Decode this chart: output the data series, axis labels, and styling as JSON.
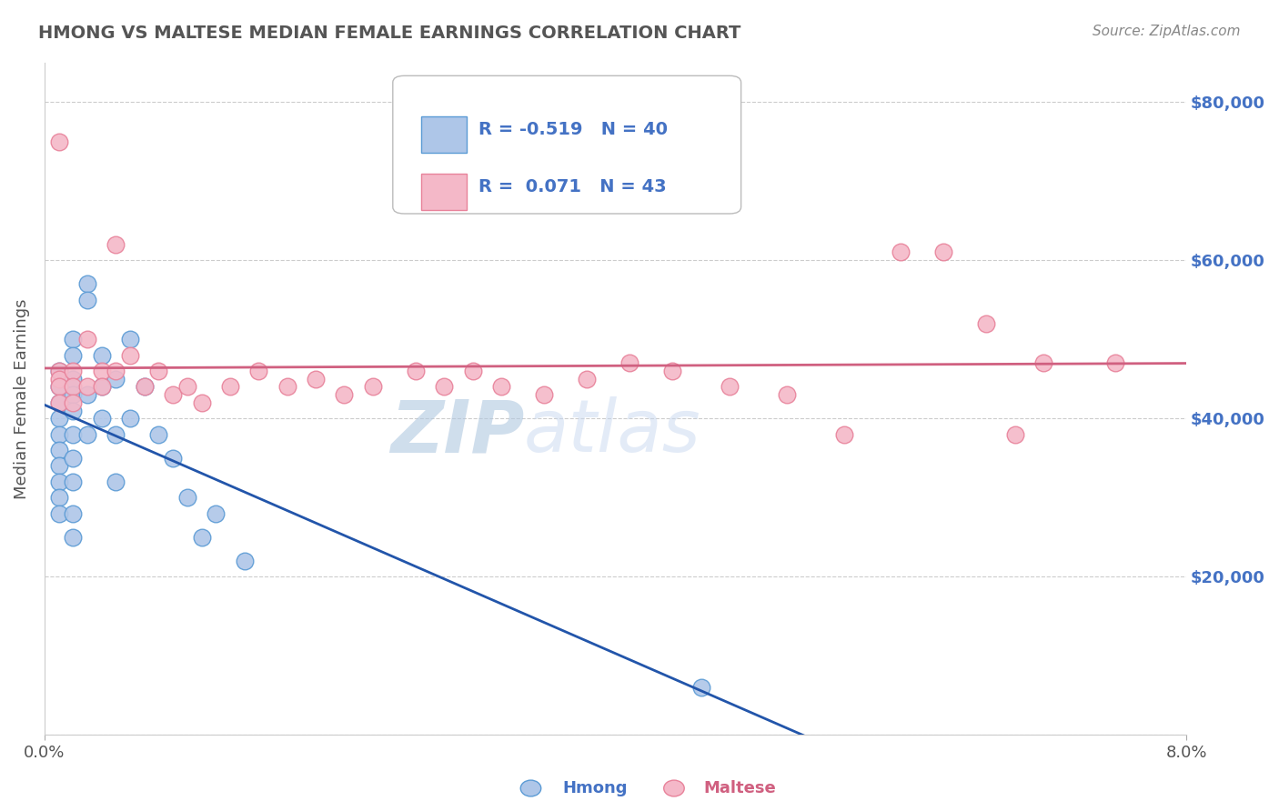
{
  "title": "HMONG VS MALTESE MEDIAN FEMALE EARNINGS CORRELATION CHART",
  "source": "Source: ZipAtlas.com",
  "ylabel": "Median Female Earnings",
  "y_ticks": [
    0,
    20000,
    40000,
    60000,
    80000
  ],
  "y_tick_labels": [
    "",
    "$20,000",
    "$40,000",
    "$60,000",
    "$80,000"
  ],
  "x_min": 0.0,
  "x_max": 0.08,
  "y_min": 0,
  "y_max": 85000,
  "hmong_color": "#aec6e8",
  "hmong_edge_color": "#5b9bd5",
  "maltese_color": "#f4b8c8",
  "maltese_edge_color": "#e8829a",
  "hmong_line_color": "#2255aa",
  "maltese_line_color": "#d06080",
  "hmong_R": -0.519,
  "hmong_N": 40,
  "maltese_R": 0.071,
  "maltese_N": 43,
  "background_color": "#ffffff",
  "grid_color": "#cccccc",
  "title_color": "#555555",
  "right_ytick_color": "#4472c4",
  "watermark_text": "ZIPatlas",
  "watermark_color": "#d0dff0",
  "hmong_x": [
    0.001,
    0.001,
    0.001,
    0.001,
    0.001,
    0.001,
    0.001,
    0.001,
    0.001,
    0.001,
    0.002,
    0.002,
    0.002,
    0.002,
    0.002,
    0.002,
    0.002,
    0.002,
    0.002,
    0.002,
    0.003,
    0.003,
    0.003,
    0.003,
    0.004,
    0.004,
    0.004,
    0.005,
    0.005,
    0.005,
    0.006,
    0.006,
    0.007,
    0.008,
    0.009,
    0.01,
    0.011,
    0.012,
    0.014,
    0.046
  ],
  "hmong_y": [
    46000,
    44000,
    42000,
    40000,
    38000,
    36000,
    34000,
    32000,
    30000,
    28000,
    50000,
    48000,
    45000,
    43000,
    41000,
    38000,
    35000,
    32000,
    28000,
    25000,
    57000,
    55000,
    43000,
    38000,
    48000,
    44000,
    40000,
    45000,
    38000,
    32000,
    50000,
    40000,
    44000,
    38000,
    35000,
    30000,
    25000,
    28000,
    22000,
    6000
  ],
  "maltese_x": [
    0.001,
    0.001,
    0.001,
    0.001,
    0.001,
    0.002,
    0.002,
    0.002,
    0.003,
    0.003,
    0.004,
    0.004,
    0.005,
    0.005,
    0.006,
    0.007,
    0.008,
    0.009,
    0.01,
    0.011,
    0.013,
    0.015,
    0.017,
    0.019,
    0.021,
    0.023,
    0.026,
    0.028,
    0.03,
    0.032,
    0.035,
    0.038,
    0.041,
    0.044,
    0.048,
    0.052,
    0.056,
    0.06,
    0.063,
    0.066,
    0.068,
    0.07,
    0.075
  ],
  "maltese_y": [
    75000,
    46000,
    45000,
    44000,
    42000,
    46000,
    44000,
    42000,
    50000,
    44000,
    46000,
    44000,
    62000,
    46000,
    48000,
    44000,
    46000,
    43000,
    44000,
    42000,
    44000,
    46000,
    44000,
    45000,
    43000,
    44000,
    46000,
    44000,
    46000,
    44000,
    43000,
    45000,
    47000,
    46000,
    44000,
    43000,
    38000,
    61000,
    61000,
    52000,
    38000,
    47000,
    47000
  ]
}
